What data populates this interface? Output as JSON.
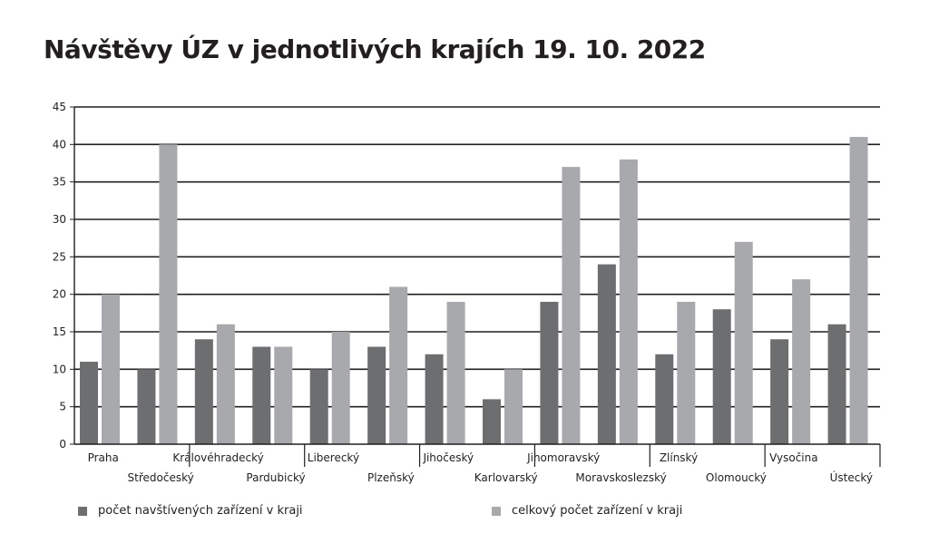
{
  "chart_data": {
    "type": "bar",
    "title": "Návštěvy ÚZ v jednotlivých krajích 19. 10. 2022",
    "categories": [
      "Praha",
      "Středočeský",
      "Královéhradecký",
      "Pardubický",
      "Liberecký",
      "Plzeňský",
      "Jihočeský",
      "Karlovarský",
      "Jihomoravský",
      "Moravskoslezský",
      "Zlínský",
      "Olomoucký",
      "Vysočina",
      "Ústecký"
    ],
    "series": [
      {
        "name": "počet navštívených zařízení v kraji",
        "color": "#6d6e70",
        "values": [
          11,
          10,
          14,
          13,
          10,
          13,
          12,
          6,
          19,
          24,
          12,
          18,
          14,
          16
        ]
      },
      {
        "name": "celkový počet zařízení v kraji",
        "color": "#a7a9ac",
        "values": [
          20,
          40,
          16,
          13,
          15,
          21,
          19,
          10,
          37,
          38,
          19,
          27,
          22,
          41
        ]
      }
    ],
    "ylim": [
      0,
      45
    ],
    "yticks": [
      "0",
      "5",
      "10",
      "15",
      "20",
      "25",
      "30",
      "35",
      "40",
      "45"
    ],
    "grid": true,
    "legend_position": "bottom"
  }
}
